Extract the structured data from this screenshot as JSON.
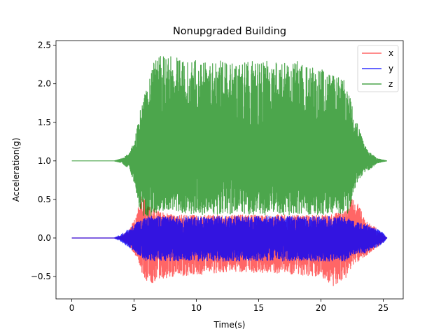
{
  "chart_data": {
    "type": "line",
    "title": "Nonupgraded Building",
    "xlabel": "Time(s)",
    "ylabel": "Acceleration(g)",
    "xlim": [
      -1.27,
      26.6
    ],
    "ylim": [
      -0.79,
      2.56
    ],
    "x_ticks": [
      0,
      5,
      10,
      15,
      20,
      25
    ],
    "y_ticks": [
      -0.5,
      0.0,
      0.5,
      1.0,
      1.5,
      2.0,
      2.5
    ],
    "x_tick_labels": [
      "0",
      "5",
      "10",
      "15",
      "20",
      "25"
    ],
    "y_tick_labels": [
      "−0.5",
      "0.0",
      "0.5",
      "1.0",
      "1.5",
      "2.0",
      "2.5"
    ],
    "grid": false,
    "legend_position": "top-right",
    "series": [
      {
        "name": "x",
        "color": "#ff0000",
        "opacity": 0.6,
        "envelope_time": [
          0,
          3.4,
          4.0,
          4.6,
          5.2,
          5.6,
          6.0,
          6.5,
          7.0,
          8.0,
          10.0,
          12.0,
          14.0,
          16.0,
          18.0,
          20.0,
          21.0,
          22.0,
          22.5,
          23.0,
          23.5,
          24.0,
          24.5,
          25.0,
          25.3
        ],
        "envelope_upper": [
          0.0,
          0.0,
          0.03,
          0.1,
          0.3,
          0.6,
          0.45,
          0.4,
          0.35,
          0.3,
          0.3,
          0.3,
          0.3,
          0.3,
          0.3,
          0.3,
          0.32,
          0.35,
          0.5,
          0.45,
          0.25,
          0.18,
          0.12,
          0.05,
          0.0
        ],
        "envelope_lower": [
          0.0,
          0.0,
          -0.03,
          -0.1,
          -0.25,
          -0.45,
          -0.55,
          -0.62,
          -0.55,
          -0.5,
          -0.48,
          -0.45,
          -0.45,
          -0.45,
          -0.48,
          -0.5,
          -0.62,
          -0.55,
          -0.35,
          -0.3,
          -0.25,
          -0.18,
          -0.12,
          -0.05,
          0.0
        ],
        "baseline": 0.0
      },
      {
        "name": "y",
        "color": "#0000ff",
        "opacity": 0.8,
        "envelope_time": [
          0,
          3.4,
          4.0,
          4.6,
          5.2,
          5.6,
          6.0,
          6.5,
          7.0,
          8.0,
          10.0,
          12.0,
          14.0,
          16.0,
          18.0,
          20.0,
          21.0,
          22.0,
          22.5,
          23.0,
          23.5,
          24.0,
          24.5,
          25.0,
          25.3
        ],
        "envelope_upper": [
          0.0,
          0.0,
          0.05,
          0.12,
          0.2,
          0.25,
          0.28,
          0.28,
          0.28,
          0.28,
          0.28,
          0.28,
          0.28,
          0.28,
          0.28,
          0.28,
          0.28,
          0.28,
          0.22,
          0.2,
          0.2,
          0.15,
          0.12,
          0.06,
          0.0
        ],
        "envelope_lower": [
          0.0,
          0.0,
          -0.05,
          -0.12,
          -0.2,
          -0.25,
          -0.3,
          -0.3,
          -0.3,
          -0.3,
          -0.3,
          -0.3,
          -0.3,
          -0.3,
          -0.3,
          -0.3,
          -0.3,
          -0.3,
          -0.22,
          -0.2,
          -0.2,
          -0.15,
          -0.12,
          -0.06,
          0.0
        ],
        "baseline": 0.0
      },
      {
        "name": "z",
        "color": "#008000",
        "opacity": 0.7,
        "envelope_time": [
          0,
          3.4,
          4.0,
          4.6,
          5.0,
          5.4,
          5.8,
          6.1,
          6.5,
          7.0,
          8.0,
          10.0,
          12.0,
          14.0,
          16.0,
          18.0,
          20.0,
          21.0,
          22.0,
          22.3,
          22.6,
          23.0,
          23.5,
          24.0,
          24.5,
          25.3
        ],
        "envelope_upper": [
          1.0,
          1.0,
          1.03,
          1.1,
          1.25,
          1.6,
          1.85,
          2.0,
          2.3,
          2.38,
          2.35,
          2.3,
          2.3,
          2.3,
          2.3,
          2.3,
          2.2,
          2.1,
          2.05,
          1.95,
          1.6,
          1.45,
          1.2,
          1.1,
          1.03,
          1.0
        ],
        "envelope_lower": [
          1.0,
          1.0,
          0.97,
          0.9,
          0.72,
          0.4,
          0.28,
          0.25,
          0.3,
          0.35,
          0.35,
          0.3,
          0.3,
          0.3,
          0.3,
          0.3,
          0.3,
          0.3,
          0.3,
          0.35,
          0.6,
          0.75,
          0.85,
          0.9,
          0.97,
          1.0
        ],
        "baseline": 1.0
      }
    ]
  }
}
